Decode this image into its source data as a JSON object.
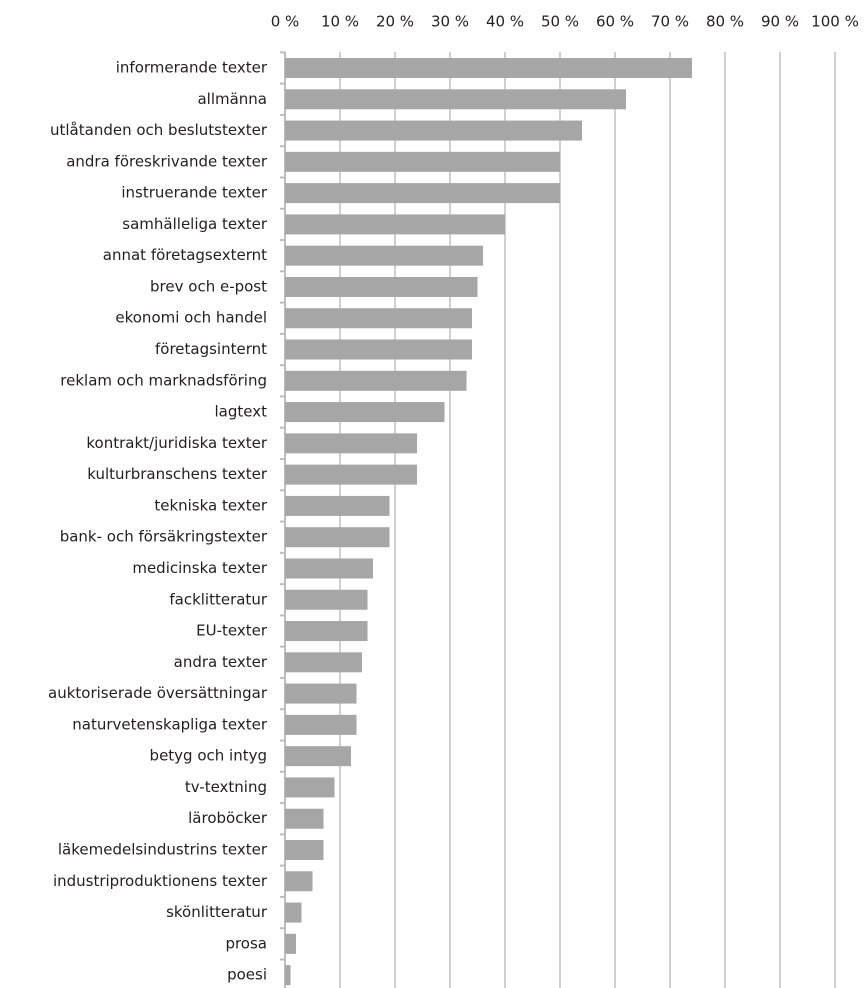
{
  "chart_data": {
    "type": "bar",
    "orientation": "horizontal",
    "categories": [
      "informerande texter",
      "allmänna",
      "utlåtanden och beslutstexter",
      "andra föreskrivande texter",
      "instruerande texter",
      "samhälleliga texter",
      "annat företagsexternt",
      "brev och e-post",
      "ekonomi och handel",
      "företagsinternt",
      "reklam och marknadsföring",
      "lagtext",
      "kontrakt/juridiska texter",
      "kulturbranschens texter",
      "tekniska texter",
      "bank- och försäkringstexter",
      "medicinska texter",
      "facklitteratur",
      "EU-texter",
      "andra texter",
      "auktoriserade översättningar",
      "naturvetenskapliga texter",
      "betyg och intyg",
      "tv-textning",
      "läroböcker",
      "läkemedelsindustrins texter",
      "industriproduktionens texter",
      "skönlitteratur",
      "prosa",
      "poesi"
    ],
    "values": [
      74,
      62,
      54,
      50,
      50,
      40,
      36,
      35,
      34,
      34,
      33,
      29,
      24,
      24,
      19,
      19,
      16,
      15,
      15,
      14,
      13,
      13,
      12,
      9,
      7,
      7,
      5,
      3,
      2,
      1
    ],
    "color": "#a6a6a6",
    "xlim": [
      0,
      100
    ],
    "xticks": [
      {
        "value": 0,
        "label": "0 %"
      },
      {
        "value": 10,
        "label": "10 %"
      },
      {
        "value": 20,
        "label": "20 %"
      },
      {
        "value": 30,
        "label": "30 %"
      },
      {
        "value": 40,
        "label": "40 %"
      },
      {
        "value": 50,
        "label": "50 %"
      },
      {
        "value": 60,
        "label": "60 %"
      },
      {
        "value": 70,
        "label": "70 %"
      },
      {
        "value": 80,
        "label": "80 %"
      },
      {
        "value": 90,
        "label": "90 %"
      },
      {
        "value": 100,
        "label": "100 %"
      }
    ],
    "grid": true
  }
}
